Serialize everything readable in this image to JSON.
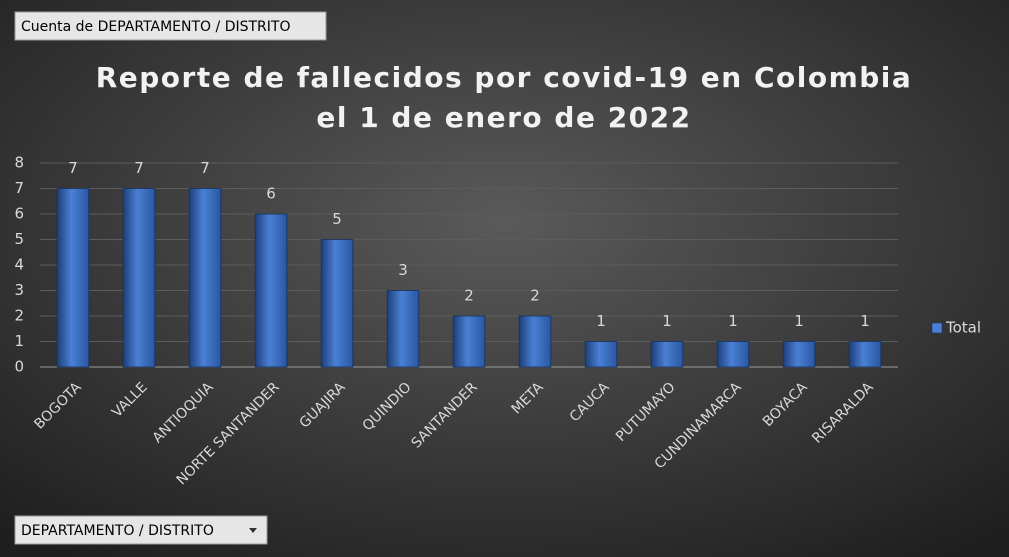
{
  "chart_data": {
    "type": "bar",
    "title_lines": [
      "Reporte de fallecidos por covid-19 en Colombia",
      "el 1 de enero de 2022"
    ],
    "pivot_value_field": "Cuenta de DEPARTAMENTO / DISTRITO",
    "pivot_axis_field": "DEPARTAMENTO / DISTRITO",
    "categories": [
      "BOGOTA",
      "VALLE",
      "ANTIOQUIA",
      "NORTE SANTANDER",
      "GUAJIRA",
      "QUINDIO",
      "SANTANDER",
      "META",
      "CAUCA",
      "PUTUMAYO",
      "CUNDINAMARCA",
      "BOYACA",
      "RISARALDA"
    ],
    "series": [
      {
        "name": "Total",
        "color": "#4a80d4",
        "values": [
          7,
          7,
          7,
          6,
          5,
          3,
          2,
          2,
          1,
          1,
          1,
          1,
          1
        ]
      }
    ],
    "ylim": [
      0,
      8
    ],
    "yticks": [
      0,
      1,
      2,
      3,
      4,
      5,
      6,
      7,
      8
    ],
    "grid": true,
    "legend": "right",
    "data_labels": true
  }
}
